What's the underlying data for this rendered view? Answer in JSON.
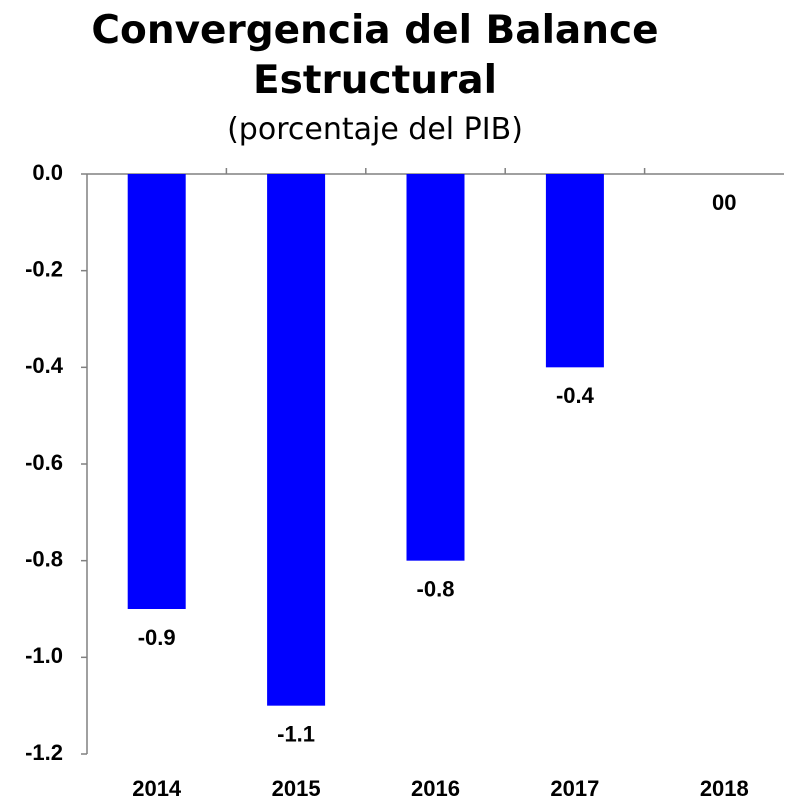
{
  "chart_data": {
    "type": "bar",
    "title": "Convergencia del Balance Estructural",
    "subtitle": "(porcentaje del PIB)",
    "categories": [
      "2014",
      "2015",
      "2016",
      "2017",
      "2018"
    ],
    "values": [
      -0.9,
      -1.1,
      -0.8,
      -0.4,
      0
    ],
    "value_labels": [
      "-0.9",
      "-1.1",
      "-0.8",
      "-0.4",
      "00"
    ],
    "color": "#0000ff",
    "ylim": [
      -1.2,
      0
    ],
    "yticks": [
      {
        "value": 0,
        "label": "0.0"
      },
      -0.2,
      -0.4,
      -0.6,
      -0.8,
      {
        "value": -1,
        "label": "-1.0"
      },
      -1.2
    ]
  }
}
